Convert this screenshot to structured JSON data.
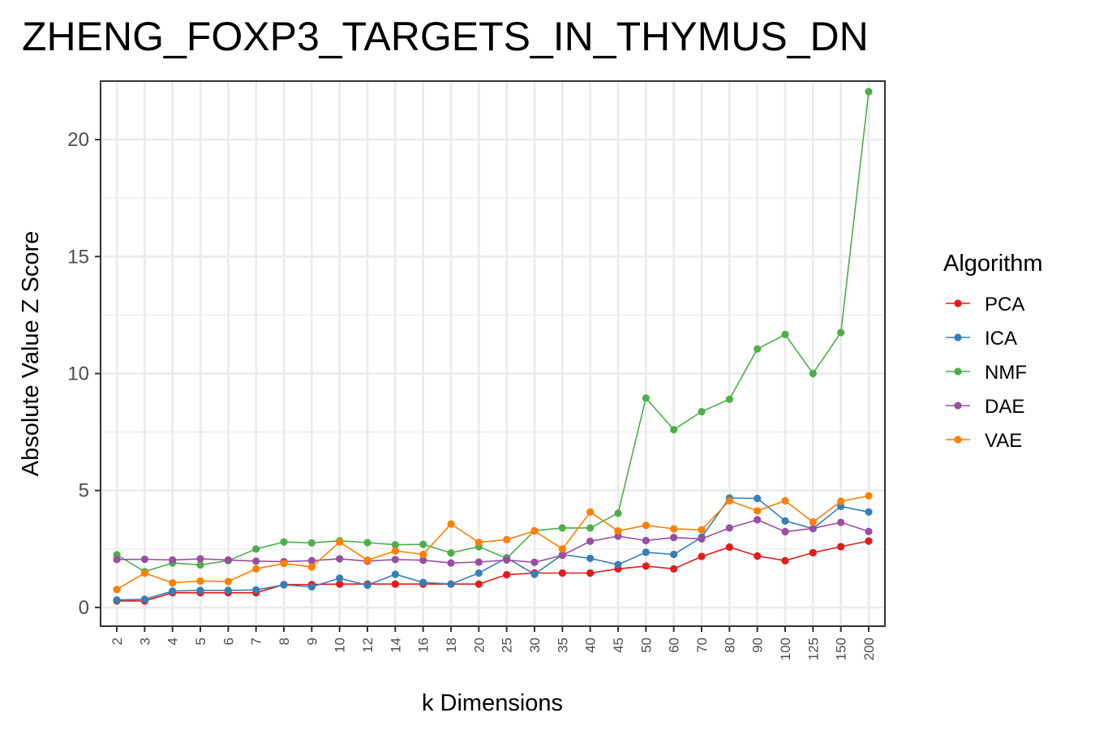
{
  "chart_data": {
    "type": "line",
    "title": "ZHENG_FOXP3_TARGETS_IN_THYMUS_DN",
    "xlabel": "k Dimensions",
    "ylabel": "Absolute Value Z Score",
    "categories": [
      "2",
      "3",
      "4",
      "5",
      "6",
      "7",
      "8",
      "9",
      "10",
      "12",
      "14",
      "16",
      "18",
      "20",
      "25",
      "30",
      "35",
      "40",
      "45",
      "50",
      "60",
      "70",
      "80",
      "90",
      "100",
      "125",
      "150",
      "200"
    ],
    "ylim": [
      -0.8,
      22.5
    ],
    "yticks": [
      0,
      5,
      10,
      15,
      20
    ],
    "grid": true,
    "legend": {
      "title": "Algorithm",
      "position": "right"
    },
    "series": [
      {
        "name": "PCA",
        "color": "#e41a1c",
        "values": [
          0.28,
          0.28,
          0.63,
          0.63,
          0.63,
          0.63,
          0.98,
          0.98,
          1.0,
          1.0,
          1.0,
          1.0,
          1.0,
          1.0,
          1.4,
          1.47,
          1.47,
          1.47,
          1.65,
          1.77,
          1.65,
          2.18,
          2.58,
          2.2,
          2.0,
          2.34,
          2.6,
          2.84
        ]
      },
      {
        "name": "ICA",
        "color": "#377eb8",
        "values": [
          0.32,
          0.35,
          0.7,
          0.73,
          0.73,
          0.75,
          0.97,
          0.88,
          1.25,
          0.95,
          1.42,
          1.07,
          1.0,
          1.47,
          2.12,
          1.42,
          2.26,
          2.1,
          1.83,
          2.36,
          2.27,
          3.0,
          4.68,
          4.66,
          3.7,
          3.37,
          4.32,
          4.08
        ]
      },
      {
        "name": "NMF",
        "color": "#4daf4a",
        "values": [
          2.25,
          1.53,
          1.9,
          1.82,
          2.0,
          2.5,
          2.8,
          2.76,
          2.85,
          2.77,
          2.68,
          2.7,
          2.33,
          2.6,
          2.1,
          3.28,
          3.4,
          3.4,
          4.03,
          8.95,
          7.6,
          8.37,
          8.9,
          11.05,
          11.67,
          10.0,
          11.75,
          22.05
        ]
      },
      {
        "name": "DAE",
        "color": "#984ea3",
        "values": [
          2.05,
          2.06,
          2.03,
          2.08,
          2.03,
          1.98,
          1.96,
          2.0,
          2.08,
          1.98,
          2.05,
          2.02,
          1.9,
          1.94,
          2.03,
          1.93,
          2.23,
          2.83,
          3.05,
          2.86,
          2.99,
          2.93,
          3.4,
          3.75,
          3.24,
          3.38,
          3.64,
          3.25
        ]
      },
      {
        "name": "VAE",
        "color": "#ff7f00",
        "values": [
          0.77,
          1.47,
          1.05,
          1.13,
          1.11,
          1.65,
          1.88,
          1.73,
          2.8,
          2.02,
          2.42,
          2.27,
          3.57,
          2.78,
          2.9,
          3.27,
          2.5,
          4.08,
          3.27,
          3.51,
          3.36,
          3.32,
          4.56,
          4.13,
          4.56,
          3.65,
          4.54,
          4.77
        ]
      }
    ]
  }
}
